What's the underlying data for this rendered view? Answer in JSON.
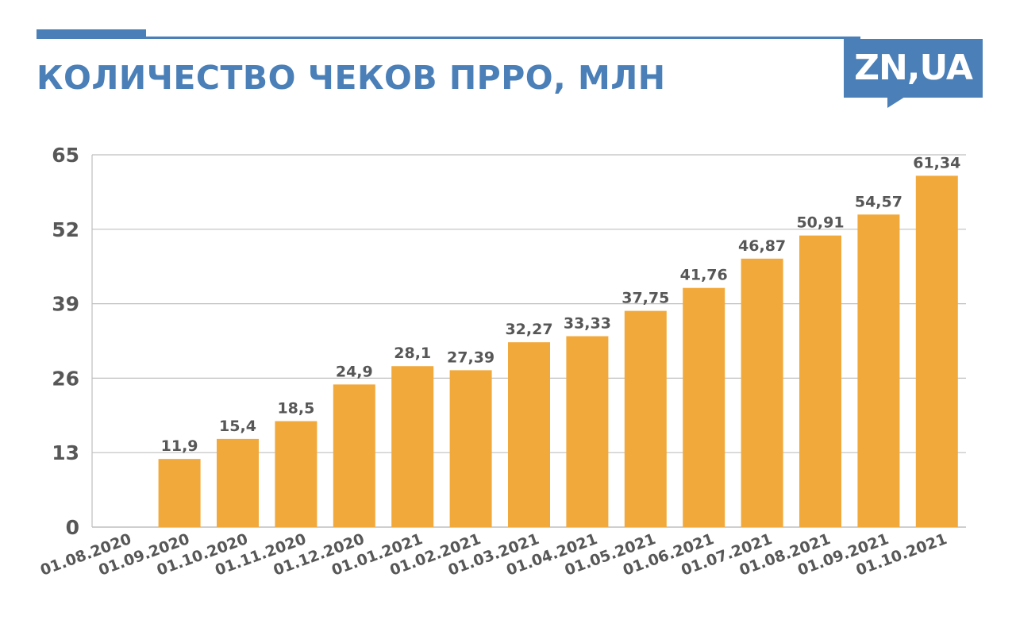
{
  "header": {
    "title": "КОЛИЧЕСТВО ЧЕКОВ ПРРО, МЛН",
    "logo_text": "ZN,UA"
  },
  "colors": {
    "accent": "#4a7fb8",
    "bar": "#f2a93b",
    "text": "#575757",
    "grid": "#bfbfbf"
  },
  "chart_data": {
    "type": "bar",
    "title": "КОЛИЧЕСТВО ЧЕКОВ ПРРО, МЛН",
    "xlabel": "",
    "ylabel": "",
    "ylim": [
      0,
      65
    ],
    "yticks": [
      0,
      13,
      26,
      39,
      52,
      65
    ],
    "grid": true,
    "categories": [
      "01.08.2020",
      "01.09.2020",
      "01.10.2020",
      "01.11.2020",
      "01.12.2020",
      "01.01.2021",
      "01.02.2021",
      "01.03.2021",
      "01.04.2021",
      "01.05.2021",
      "01.06.2021",
      "01.07.2021",
      "01.08.2021",
      "01.09.2021",
      "01.10.2021"
    ],
    "values": [
      null,
      11.9,
      15.4,
      18.5,
      24.9,
      28.1,
      27.39,
      32.27,
      33.33,
      37.75,
      41.76,
      46.87,
      50.91,
      54.57,
      61.34
    ],
    "data_labels": [
      "",
      "11,9",
      "15,4",
      "18,5",
      "24,9",
      "28,1",
      "27,39",
      "32,27",
      "33,33",
      "37,75",
      "41,76",
      "46,87",
      "50,91",
      "54,57",
      "61,34"
    ]
  }
}
